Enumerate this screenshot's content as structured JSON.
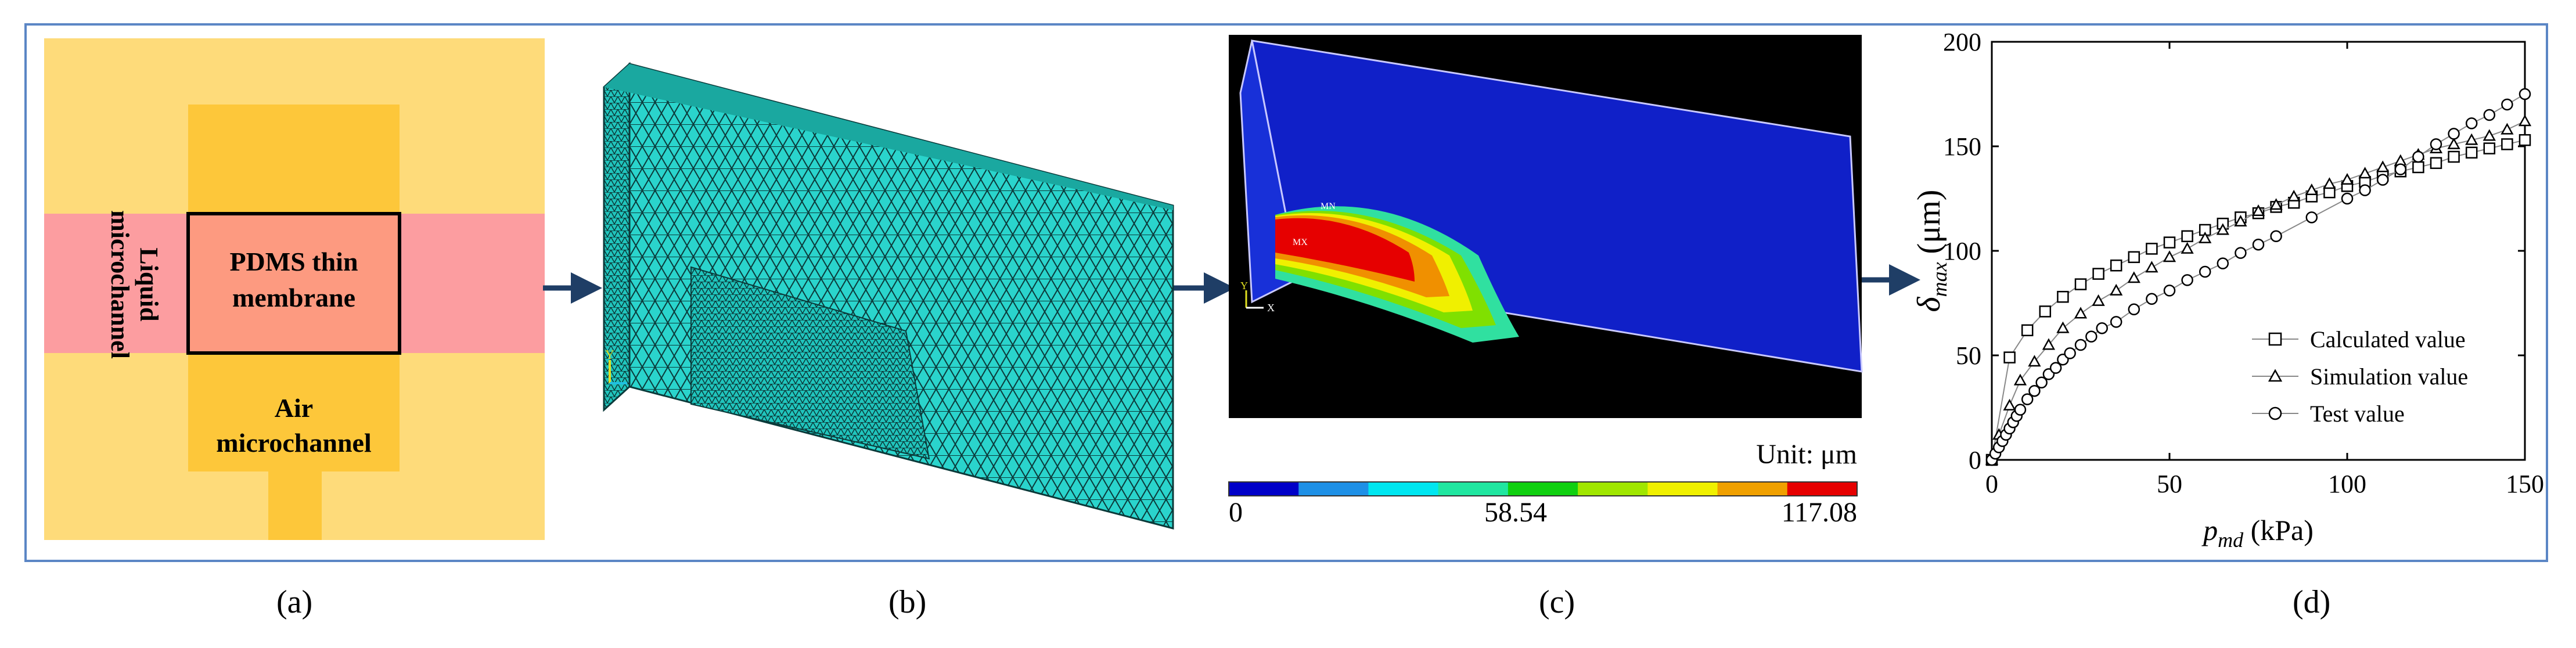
{
  "panels": {
    "labels": [
      "(a)",
      "(b)",
      "(c)",
      "(d)"
    ]
  },
  "panel_a": {
    "liquid_label": [
      "Liquid",
      "microchannel"
    ],
    "membrane_label": [
      "PDMS thin",
      "membrane"
    ],
    "air_label": [
      "Air",
      "microchannel"
    ]
  },
  "panel_c": {
    "unit_label": "Unit: μm",
    "scale_min": "0",
    "scale_mid": "58.54",
    "scale_max": "117.08",
    "mn_label": "MN",
    "mx_label": "MX",
    "axis_y": "Y",
    "axis_x": "X",
    "legend_colors": [
      "#0000c8",
      "#1e90e6",
      "#00e6f0",
      "#20e6a0",
      "#10d010",
      "#a0e600",
      "#f0f000",
      "#f0a000",
      "#e60000"
    ]
  },
  "chart_data": {
    "type": "scatter",
    "title": "",
    "xlabel_main": "p",
    "xlabel_sub": "md",
    "xlabel_unit": " (kPa)",
    "ylabel_main": "δ",
    "ylabel_sub": "max",
    "ylabel_unit": " (μm)",
    "xlim": [
      0,
      150
    ],
    "ylim": [
      0,
      200
    ],
    "xticks": [
      0,
      50,
      100,
      150
    ],
    "yticks": [
      0,
      50,
      100,
      150,
      200
    ],
    "legend_position": "bottom-right",
    "series": [
      {
        "name": "Calculated value",
        "marker": "square",
        "x": [
          0,
          5,
          10,
          15,
          20,
          25,
          30,
          35,
          40,
          45,
          50,
          55,
          60,
          65,
          70,
          75,
          80,
          85,
          90,
          95,
          100,
          105,
          110,
          115,
          120,
          125,
          130,
          135,
          140,
          145,
          150
        ],
        "y": [
          0,
          49,
          62,
          71,
          78,
          84,
          89,
          93,
          97,
          101,
          104,
          107,
          110,
          113,
          116,
          118,
          121,
          123,
          126,
          128,
          131,
          133,
          136,
          138,
          140,
          142,
          145,
          147,
          149,
          151,
          153
        ]
      },
      {
        "name": "Simulation value",
        "marker": "triangle",
        "x": [
          0,
          2,
          5,
          8,
          12,
          16,
          20,
          25,
          30,
          35,
          40,
          45,
          50,
          55,
          60,
          65,
          70,
          75,
          80,
          85,
          90,
          95,
          100,
          105,
          110,
          115,
          120,
          125,
          130,
          135,
          140,
          145,
          150
        ],
        "y": [
          0,
          12,
          26,
          38,
          47,
          55,
          63,
          70,
          76,
          81,
          87,
          92,
          97,
          101,
          106,
          110,
          114,
          119,
          122,
          126,
          129,
          132,
          134,
          137,
          140,
          143,
          146,
          149,
          151,
          153,
          155,
          158,
          162
        ]
      },
      {
        "name": "Test value",
        "marker": "circle",
        "x": [
          0,
          1,
          2,
          3,
          4,
          5,
          6,
          7,
          8,
          10,
          12,
          14,
          16,
          18,
          20,
          22,
          25,
          28,
          31,
          35,
          40,
          45,
          50,
          55,
          60,
          65,
          70,
          75,
          80,
          90,
          100,
          105,
          110,
          115,
          120,
          125,
          130,
          135,
          140,
          145,
          150
        ],
        "y": [
          0,
          3,
          6,
          9,
          12,
          15,
          18,
          21,
          24,
          29,
          33,
          37,
          41,
          44,
          48,
          51,
          55,
          59,
          63,
          66,
          72,
          77,
          81,
          86,
          90,
          94,
          99,
          103,
          107,
          116,
          125,
          129,
          134,
          139,
          145,
          151,
          156,
          161,
          165,
          170,
          175
        ]
      }
    ]
  }
}
